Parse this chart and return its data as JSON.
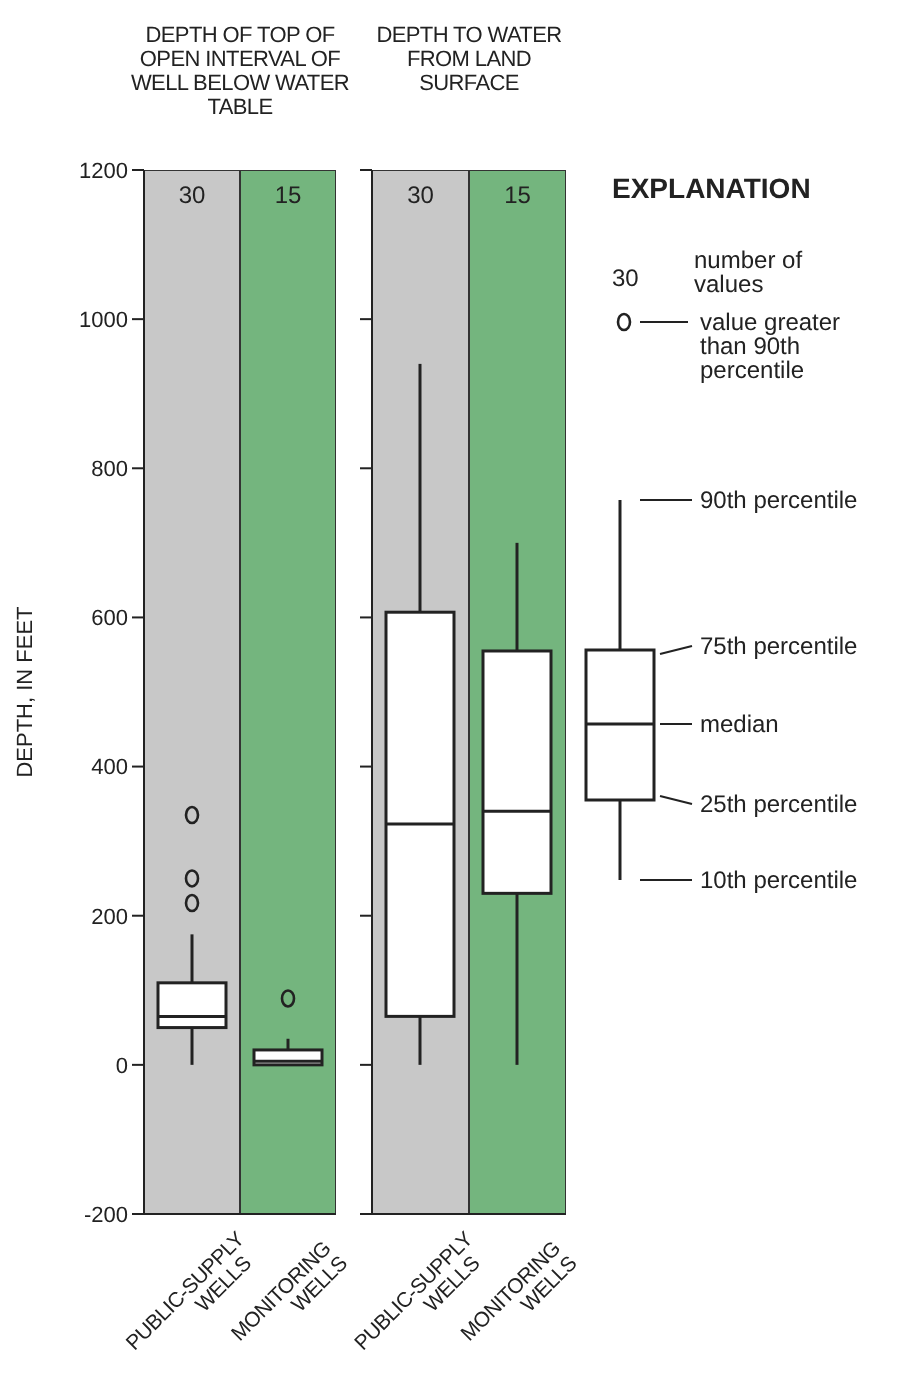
{
  "chart_data": [
    {
      "type": "box",
      "title": "DEPTH OF TOP OF OPEN INTERVAL OF WELL BELOW WATER TABLE",
      "ylabel": "DEPTH, IN FEET",
      "categories": [
        "PUBLIC-SUPPLY WELLS",
        "MONITORING WELLS"
      ],
      "colors": [
        "#ffffff",
        "#ffffff"
      ],
      "boxes": [
        {
          "low": 0,
          "q1": 50,
          "median": 65,
          "q3": 110,
          "high": 175,
          "outliers": [
            335,
            250,
            217
          ]
        },
        {
          "low": 0,
          "q1": 0,
          "median": 5,
          "q3": 20,
          "high": 35,
          "outliers": [
            89
          ]
        }
      ],
      "bands": [
        {
          "axis": "x",
          "from": "PUBLIC-SUPPLY WELLS",
          "to": "PUBLIC-SUPPLY WELLS",
          "color": "#c8c8c8"
        },
        {
          "axis": "x",
          "from": "MONITORING WELLS",
          "to": "MONITORING WELLS",
          "color": "#74b57e"
        }
      ],
      "annotations": [
        "30",
        "15"
      ],
      "ylim": [
        -200,
        1200
      ],
      "yticks": [
        -200,
        0,
        200,
        400,
        600,
        800,
        1000,
        1200
      ],
      "marker": "circle"
    },
    {
      "type": "box",
      "title": "DEPTH TO WATER FROM LAND SURFACE",
      "categories": [
        "PUBLIC-SUPPLY WELLS",
        "MONITORING WELLS"
      ],
      "colors": [
        "#ffffff",
        "#ffffff"
      ],
      "boxes": [
        {
          "low": 0,
          "q1": 65,
          "median": 323,
          "q3": 607,
          "high": 940
        },
        {
          "low": 0,
          "q1": 230,
          "median": 340,
          "q3": 555,
          "high": 700
        }
      ],
      "bands": [
        {
          "axis": "x",
          "from": "PUBLIC-SUPPLY WELLS",
          "to": "PUBLIC-SUPPLY WELLS",
          "color": "#c8c8c8"
        },
        {
          "axis": "x",
          "from": "MONITORING WELLS",
          "to": "MONITORING WELLS",
          "color": "#74b57e"
        }
      ],
      "annotations": [
        "30",
        "15"
      ],
      "ylim": [
        -200,
        1200
      ],
      "yticks": [
        -200,
        0,
        200,
        400,
        600,
        800,
        1000,
        1200
      ],
      "tick_labels": "x"
    },
    {
      "type": "other",
      "title": "EXPLANATION",
      "annotations": [
        "30",
        "number of values",
        "value greater than 90th percentile",
        "90th percentile",
        "75th percentile",
        "median",
        "25th percentile",
        "10th percentile"
      ]
    }
  ]
}
